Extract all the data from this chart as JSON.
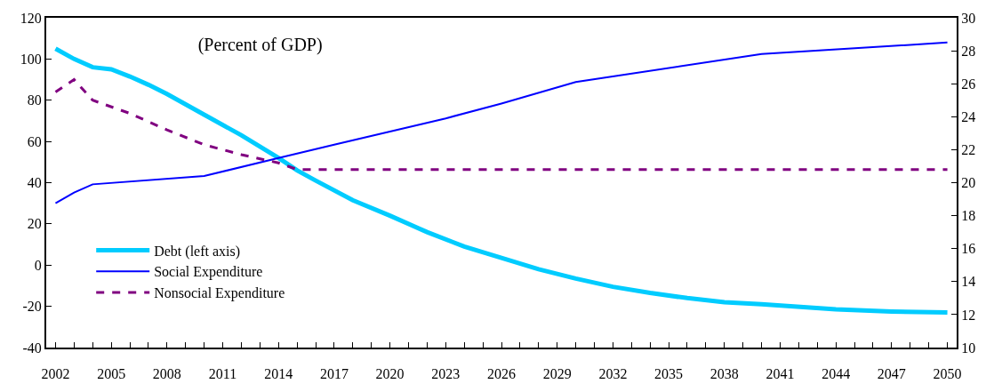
{
  "chart_data": {
    "type": "line",
    "title": "(Percent of GDP)",
    "xlim": [
      2001.5,
      2050.5
    ],
    "xticks": [
      2002,
      {
        "value": 2003,
        "label": null
      },
      {
        "value": 2004,
        "label": null
      },
      2005,
      {
        "value": 2006,
        "label": null
      },
      {
        "value": 2007,
        "label": null
      },
      2008,
      {
        "value": 2009,
        "label": null
      },
      {
        "value": 2010,
        "label": null
      },
      2011,
      {
        "value": 2012,
        "label": null
      },
      {
        "value": 2013,
        "label": null
      },
      2014,
      {
        "value": 2015,
        "label": null
      },
      {
        "value": 2016,
        "label": null
      },
      2017,
      {
        "value": 2018,
        "label": null
      },
      {
        "value": 2019,
        "label": null
      },
      2020,
      {
        "value": 2021,
        "label": null
      },
      {
        "value": 2022,
        "label": null
      },
      2023,
      {
        "value": 2024,
        "label": null
      },
      {
        "value": 2025,
        "label": null
      },
      2026,
      {
        "value": 2027,
        "label": null
      },
      {
        "value": 2028,
        "label": null
      },
      2029,
      {
        "value": 2030,
        "label": null
      },
      {
        "value": 2031,
        "label": null
      },
      2032,
      {
        "value": 2033,
        "label": null
      },
      {
        "value": 2034,
        "label": null
      },
      2035,
      {
        "value": 2036,
        "label": null
      },
      {
        "value": 2037,
        "label": null
      },
      2038,
      {
        "value": 2039,
        "label": null
      },
      {
        "value": 2040,
        "label": null
      },
      2041,
      {
        "value": 2042,
        "label": null
      },
      {
        "value": 2043,
        "label": null
      },
      2044,
      {
        "value": 2045,
        "label": null
      },
      {
        "value": 2046,
        "label": null
      },
      2047,
      {
        "value": 2048,
        "label": null
      },
      {
        "value": 2049,
        "label": null
      },
      2050
    ],
    "ylim": [
      -40,
      120
    ],
    "yticks": [
      -40,
      -20,
      0,
      20,
      40,
      60,
      80,
      100,
      120
    ],
    "y2lim": [
      10,
      30
    ],
    "y2ticks": [
      10,
      12,
      14,
      16,
      18,
      20,
      22,
      24,
      26,
      28,
      30
    ],
    "legend": "bottom left",
    "marker": "none",
    "series": [
      {
        "name": "Debt (left axis)",
        "color": "#00ccff",
        "line_style": "solid",
        "x": [
          2002,
          2003,
          2004,
          2005,
          2006,
          2007,
          2008,
          2010,
          2012,
          2014,
          2015,
          2016,
          2018,
          2020,
          2022,
          2024,
          2026,
          2028,
          2030,
          2032,
          2034,
          2036,
          2038,
          2040,
          2044,
          2047,
          2050
        ],
        "values": [
          105,
          100,
          96,
          95,
          91.5,
          87.5,
          83,
          73,
          63,
          52,
          46,
          41,
          31.5,
          24,
          16,
          9,
          3.5,
          -2,
          -6.5,
          -10.5,
          -13.5,
          -16,
          -18,
          -19,
          -21.5,
          -22.5,
          -23
        ]
      },
      {
        "name": "Social Expenditure",
        "color": "#0000ff",
        "line_style": "solid",
        "axis": "y2",
        "x": [
          2002,
          2003,
          2004,
          2010,
          2014,
          2017,
          2020,
          2023,
          2026,
          2030,
          2040,
          2050
        ],
        "values": [
          18.75,
          19.4,
          19.9,
          20.4,
          21.5,
          22.3,
          23.1,
          23.9,
          24.8,
          26.1,
          27.8,
          28.5
        ]
      },
      {
        "name": "Nonsocial Expenditure",
        "color": "#800080",
        "line_style": "dashed",
        "axis": "y2",
        "x": [
          2002,
          2003,
          2004,
          2006,
          2008,
          2010,
          2012,
          2014,
          2015,
          2020,
          2030,
          2040,
          2050
        ],
        "values": [
          25.5,
          26.25,
          25,
          24.2,
          23.2,
          22.3,
          21.7,
          21.2,
          20.8,
          20.8,
          20.8,
          20.8,
          20.8
        ]
      }
    ]
  }
}
